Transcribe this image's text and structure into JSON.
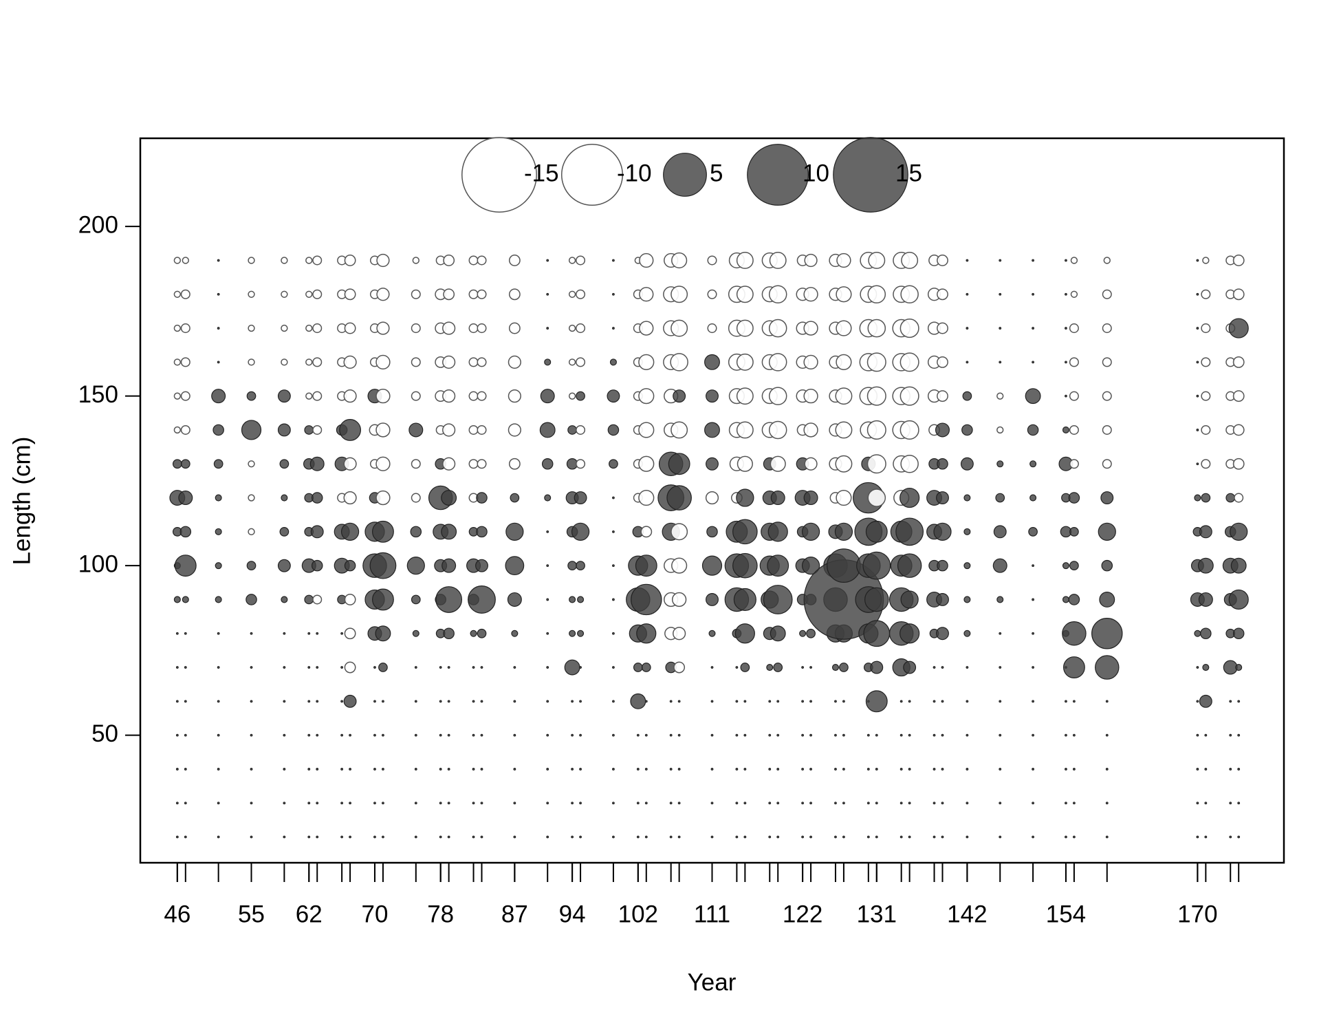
{
  "chart_data": {
    "type": "bubble",
    "xlabel": "Year",
    "ylabel": "Length (cm)",
    "xlim": [
      41.5,
      180.5
    ],
    "ylim": [
      12.4,
      226
    ],
    "xticks": [
      46,
      55,
      62,
      70,
      78,
      87,
      94,
      102,
      111,
      122,
      131,
      142,
      154,
      170
    ],
    "yticks": [
      50,
      100,
      150,
      200
    ],
    "positive_color": "#404040",
    "negative_color": "#ffffff",
    "size_legend": [
      -15,
      -10,
      5,
      10,
      15
    ],
    "lengths": [
      20,
      30,
      40,
      50,
      60,
      70,
      80,
      90,
      100,
      110,
      120,
      130,
      140,
      150,
      160,
      170,
      180,
      190
    ],
    "columns": [
      {
        "x": 46,
        "values": [
          0,
          0,
          0,
          0,
          0,
          0,
          0,
          0.1,
          0.1,
          0.2,
          0.6,
          0.2,
          -0.1,
          -0.1,
          -0.1,
          -0.1,
          -0.1,
          -0.1
        ]
      },
      {
        "x": 47,
        "values": [
          0,
          0,
          0,
          0,
          0,
          0,
          0,
          0.1,
          1.2,
          0.3,
          0.5,
          0.2,
          -0.2,
          -0.2,
          -0.2,
          -0.2,
          -0.2,
          -0.1
        ]
      },
      {
        "x": 51,
        "values": [
          0,
          0,
          0,
          0,
          0,
          0,
          0,
          0.1,
          0.1,
          0.1,
          0.1,
          0.2,
          0.3,
          0.5,
          0,
          0,
          0,
          0
        ]
      },
      {
        "x": 55,
        "values": [
          0,
          0,
          0,
          0,
          0,
          0,
          0,
          0.3,
          0.2,
          -0.1,
          -0.1,
          -0.1,
          1,
          0.2,
          -0.1,
          -0.1,
          -0.1,
          -0.1
        ]
      },
      {
        "x": 59,
        "values": [
          0,
          0,
          0,
          0,
          0,
          0,
          0,
          0.1,
          0.4,
          0.2,
          0.1,
          0.2,
          0.4,
          0.4,
          -0.1,
          -0.1,
          -0.1,
          -0.1
        ]
      },
      {
        "x": 62,
        "values": [
          0,
          0,
          0,
          0,
          0,
          0,
          0,
          0.2,
          0.5,
          0.2,
          0.2,
          0.3,
          0.2,
          -0.1,
          -0.1,
          -0.1,
          -0.1,
          -0.1
        ]
      },
      {
        "x": 63,
        "values": [
          0,
          0,
          0,
          0,
          0,
          0,
          0,
          -0.2,
          0.3,
          0.4,
          0.3,
          0.5,
          -0.2,
          -0.2,
          -0.2,
          -0.2,
          -0.2,
          -0.2
        ]
      },
      {
        "x": 66,
        "values": [
          0,
          0,
          0,
          0,
          0,
          0,
          0,
          0.2,
          0.6,
          0.6,
          -0.2,
          0.5,
          0.3,
          -0.2,
          -0.2,
          -0.2,
          -0.2,
          -0.2
        ]
      },
      {
        "x": 67,
        "values": [
          0,
          0,
          0,
          0,
          0.4,
          -0.3,
          -0.3,
          -0.3,
          0.3,
          0.8,
          -0.4,
          -0.4,
          1.2,
          -0.4,
          -0.4,
          -0.3,
          -0.3,
          -0.3
        ]
      },
      {
        "x": 70,
        "values": [
          0,
          0,
          0,
          0,
          0,
          0,
          0.5,
          1,
          1.5,
          1,
          0.3,
          -0.2,
          -0.3,
          0.5,
          -0.2,
          -0.2,
          -0.2,
          -0.2
        ]
      },
      {
        "x": 71,
        "values": [
          0,
          0,
          0,
          0,
          0,
          0.2,
          0.6,
          1.2,
          1.8,
          1.2,
          -0.5,
          -0.5,
          -0.5,
          -0.5,
          -0.5,
          -0.4,
          -0.4,
          -0.4
        ]
      },
      {
        "x": 75,
        "values": [
          0,
          0,
          0,
          0,
          0,
          0,
          0.1,
          0.2,
          0.8,
          0.3,
          -0.2,
          -0.2,
          0.5,
          -0.2,
          -0.2,
          -0.2,
          -0.2,
          -0.1
        ]
      },
      {
        "x": 78,
        "values": [
          0,
          0,
          0,
          0,
          0,
          0,
          0.2,
          0.3,
          0.4,
          0.6,
          1.5,
          0.3,
          -0.2,
          -0.3,
          -0.3,
          -0.3,
          -0.3,
          -0.2
        ]
      },
      {
        "x": 79,
        "values": [
          0,
          0,
          0,
          0,
          0,
          0,
          0.3,
          1.8,
          0.5,
          0.6,
          0.6,
          -0.4,
          -0.4,
          -0.4,
          -0.4,
          -0.4,
          -0.3,
          -0.3
        ]
      },
      {
        "x": 82,
        "values": [
          0,
          0,
          0,
          0,
          0,
          0,
          0.1,
          0.3,
          0.5,
          0.2,
          -0.2,
          -0.2,
          -0.2,
          -0.2,
          -0.2,
          -0.2,
          -0.2,
          -0.2
        ]
      },
      {
        "x": 83,
        "values": [
          0,
          0,
          0,
          0,
          0,
          0,
          0.2,
          2,
          0.4,
          0.3,
          0.3,
          -0.2,
          -0.2,
          -0.2,
          -0.2,
          -0.2,
          -0.2,
          -0.2
        ]
      },
      {
        "x": 87,
        "values": [
          0,
          0,
          0,
          0,
          0,
          0,
          0.1,
          0.5,
          0.9,
          0.8,
          0.2,
          -0.3,
          -0.4,
          -0.4,
          -0.4,
          -0.3,
          -0.3,
          -0.3
        ]
      },
      {
        "x": 91,
        "values": [
          0,
          0,
          0,
          0,
          0,
          0,
          0,
          0,
          0,
          0,
          0.1,
          0.3,
          0.6,
          0.5,
          0.1,
          0,
          0,
          0
        ]
      },
      {
        "x": 94,
        "values": [
          0,
          0,
          0,
          0,
          0,
          0.6,
          0.1,
          0.1,
          0.2,
          0.3,
          0.4,
          0.3,
          0.2,
          -0.1,
          -0.1,
          -0.1,
          -0.1,
          -0.1
        ]
      },
      {
        "x": 95,
        "values": [
          0,
          0,
          0,
          0,
          0,
          0,
          0.1,
          0.1,
          0.2,
          0.8,
          0.4,
          -0.2,
          -0.2,
          0.2,
          -0.2,
          -0.2,
          -0.2,
          -0.2
        ]
      },
      {
        "x": 99,
        "values": [
          0,
          0,
          0,
          0,
          0,
          0,
          0,
          0,
          0,
          0,
          0,
          0.2,
          0.3,
          0.4,
          0.1,
          0,
          0,
          0
        ]
      },
      {
        "x": 102,
        "values": [
          0,
          0,
          0,
          0,
          0.6,
          0.2,
          0.8,
          1.5,
          1,
          0.3,
          -0.2,
          -0.2,
          -0.2,
          -0.2,
          -0.2,
          -0.2,
          -0.2,
          -0.1
        ]
      },
      {
        "x": 103,
        "values": [
          0,
          0,
          0,
          0,
          0,
          0.2,
          1,
          2.5,
          1.2,
          -0.3,
          -0.6,
          -0.6,
          -0.6,
          -0.6,
          -0.6,
          -0.5,
          -0.5,
          -0.5
        ]
      },
      {
        "x": 106,
        "values": [
          0,
          0,
          0,
          0,
          0,
          0.3,
          -0.4,
          -0.5,
          -0.5,
          0.8,
          1.8,
          1.5,
          -0.5,
          -0.5,
          -0.6,
          -0.6,
          -0.6,
          -0.5
        ]
      },
      {
        "x": 107,
        "values": [
          0,
          0,
          0,
          0,
          0,
          -0.3,
          -0.4,
          -0.5,
          -0.6,
          -0.7,
          1.6,
          1.2,
          -0.7,
          0.4,
          -0.8,
          -0.7,
          -0.7,
          -0.6
        ]
      },
      {
        "x": 111,
        "values": [
          0,
          0,
          0,
          0,
          0,
          0,
          0.1,
          0.4,
          1,
          0.3,
          -0.4,
          0.4,
          0.6,
          0.4,
          0.6,
          -0.2,
          -0.2,
          -0.2
        ]
      },
      {
        "x": 114,
        "values": [
          0,
          0,
          0,
          0,
          0,
          0,
          0.2,
          1.5,
          1.5,
          1.2,
          -0.3,
          -0.5,
          -0.6,
          -0.6,
          -0.7,
          -0.7,
          -0.7,
          -0.6
        ]
      },
      {
        "x": 115,
        "values": [
          0,
          0,
          0,
          0,
          0,
          0.2,
          1,
          1.3,
          1.6,
          1.6,
          0.8,
          -0.6,
          -0.7,
          -0.7,
          -0.7,
          -0.7,
          -0.7,
          -0.7
        ]
      },
      {
        "x": 118,
        "values": [
          0,
          0,
          0,
          0,
          0,
          0.1,
          0.4,
          0.8,
          1,
          0.8,
          0.5,
          0.4,
          -0.6,
          -0.6,
          -0.6,
          -0.6,
          -0.6,
          -0.6
        ]
      },
      {
        "x": 119,
        "values": [
          0,
          0,
          0,
          0,
          0,
          0.2,
          0.6,
          2.2,
          1.2,
          1,
          0.5,
          -0.6,
          -0.8,
          -0.8,
          -0.8,
          -0.8,
          -0.8,
          -0.7
        ]
      },
      {
        "x": 122,
        "values": [
          0,
          0,
          0,
          0,
          0,
          0,
          0.1,
          0.3,
          0.5,
          0.3,
          0.6,
          0.4,
          -0.3,
          -0.4,
          -0.4,
          -0.4,
          -0.4,
          -0.3
        ]
      },
      {
        "x": 123,
        "values": [
          0,
          0,
          0,
          0,
          0,
          0,
          0.2,
          0.3,
          0.8,
          0.8,
          0.5,
          -0.4,
          -0.5,
          -0.5,
          -0.5,
          -0.5,
          -0.5,
          -0.4
        ]
      },
      {
        "x": 126,
        "values": [
          0,
          0,
          0,
          0,
          0,
          0.1,
          0.8,
          1.5,
          1.5,
          0.5,
          -0.3,
          -0.4,
          -0.4,
          -0.4,
          -0.4,
          -0.4,
          -0.4,
          -0.4
        ]
      },
      {
        "x": 127,
        "values": [
          0,
          0,
          0,
          0,
          0,
          0.2,
          0.8,
          17,
          3,
          0.8,
          -0.6,
          -0.7,
          -0.7,
          -0.7,
          -0.6,
          -0.6,
          -0.6,
          -0.5
        ]
      },
      {
        "x": 130,
        "values": [
          0,
          0,
          0,
          0,
          0,
          0.2,
          1,
          1.8,
          1.5,
          2,
          2.5,
          0.5,
          -0.7,
          -0.8,
          -0.8,
          -0.8,
          -0.7,
          -0.7
        ]
      },
      {
        "x": 131,
        "values": [
          0,
          0,
          0,
          0,
          1.2,
          0.4,
          1.8,
          1.5,
          2,
          1.2,
          -0.8,
          -0.9,
          -0.9,
          -0.9,
          -0.9,
          -0.8,
          -0.8,
          -0.7
        ]
      },
      {
        "x": 134,
        "values": [
          0,
          0,
          0,
          0,
          0,
          0.8,
          1.5,
          1.5,
          1.2,
          1.2,
          -0.6,
          -0.7,
          -0.8,
          -0.8,
          -0.8,
          -0.8,
          -0.7,
          -0.7
        ]
      },
      {
        "x": 135,
        "values": [
          0,
          0,
          0,
          0,
          0,
          0.4,
          1,
          0.8,
          1.5,
          2,
          1,
          -0.8,
          -0.9,
          -0.9,
          -0.9,
          -0.9,
          -0.8,
          -0.7
        ]
      },
      {
        "x": 138,
        "values": [
          0,
          0,
          0,
          0,
          0,
          0,
          0.2,
          0.6,
          0.3,
          0.6,
          0.6,
          0.3,
          -0.3,
          -0.4,
          -0.4,
          -0.4,
          -0.4,
          -0.3
        ]
      },
      {
        "x": 139,
        "values": [
          0,
          0,
          0,
          0,
          0,
          0,
          0.4,
          0.4,
          0.3,
          0.8,
          0.4,
          0.3,
          0.5,
          -0.3,
          -0.3,
          -0.3,
          -0.3,
          -0.3
        ]
      },
      {
        "x": 142,
        "values": [
          0,
          0,
          0,
          0,
          0,
          0,
          0.1,
          0.1,
          0.1,
          0.1,
          0.1,
          0.4,
          0.3,
          0.2,
          0,
          0,
          0,
          0
        ]
      },
      {
        "x": 146,
        "values": [
          0,
          0,
          0,
          0,
          0,
          0,
          0,
          0.1,
          0.5,
          0.4,
          0.2,
          0.1,
          -0.1,
          -0.1,
          0,
          0,
          0,
          0
        ]
      },
      {
        "x": 150,
        "values": [
          0,
          0,
          0,
          0,
          0,
          0,
          0,
          0,
          0,
          0.2,
          0.1,
          0.1,
          0.3,
          0.6,
          0,
          0,
          0,
          0
        ]
      },
      {
        "x": 154,
        "values": [
          0,
          0,
          0,
          0,
          0,
          0,
          0.1,
          0.1,
          0.1,
          0.3,
          0.2,
          0.5,
          0.1,
          0,
          0,
          0,
          0,
          0
        ]
      },
      {
        "x": 155,
        "values": [
          0,
          0,
          0,
          0,
          0,
          1.2,
          1.5,
          0.3,
          0.2,
          0.2,
          0.3,
          -0.2,
          -0.2,
          -0.2,
          -0.2,
          -0.2,
          -0.1,
          -0.1
        ]
      },
      {
        "x": 159,
        "values": [
          0,
          0,
          0,
          0,
          0,
          1.5,
          2.5,
          0.6,
          0.3,
          0.8,
          0.4,
          -0.2,
          -0.2,
          -0.2,
          -0.2,
          -0.2,
          -0.2,
          -0.1
        ]
      },
      {
        "x": 170,
        "values": [
          0,
          0,
          0,
          0,
          0,
          0,
          0.1,
          0.5,
          0.4,
          0.2,
          0.1,
          0,
          0,
          0,
          0,
          0,
          0,
          0
        ]
      },
      {
        "x": 171,
        "values": [
          0,
          0,
          0,
          0,
          0.4,
          0.1,
          0.3,
          0.5,
          0.6,
          0.4,
          0.2,
          -0.2,
          -0.2,
          -0.2,
          -0.2,
          -0.2,
          -0.2,
          -0.1
        ]
      },
      {
        "x": 174,
        "values": [
          0,
          0,
          0,
          0,
          0,
          0.5,
          0.2,
          0.4,
          0.6,
          0.3,
          0.2,
          -0.2,
          -0.2,
          -0.2,
          -0.2,
          -0.2,
          -0.2,
          -0.2
        ]
      },
      {
        "x": 175,
        "values": [
          0,
          0,
          0,
          0,
          0,
          0.1,
          0.3,
          1,
          0.6,
          0.8,
          -0.2,
          -0.3,
          -0.3,
          -0.3,
          -0.3,
          1,
          -0.3,
          -0.3
        ]
      }
    ]
  }
}
